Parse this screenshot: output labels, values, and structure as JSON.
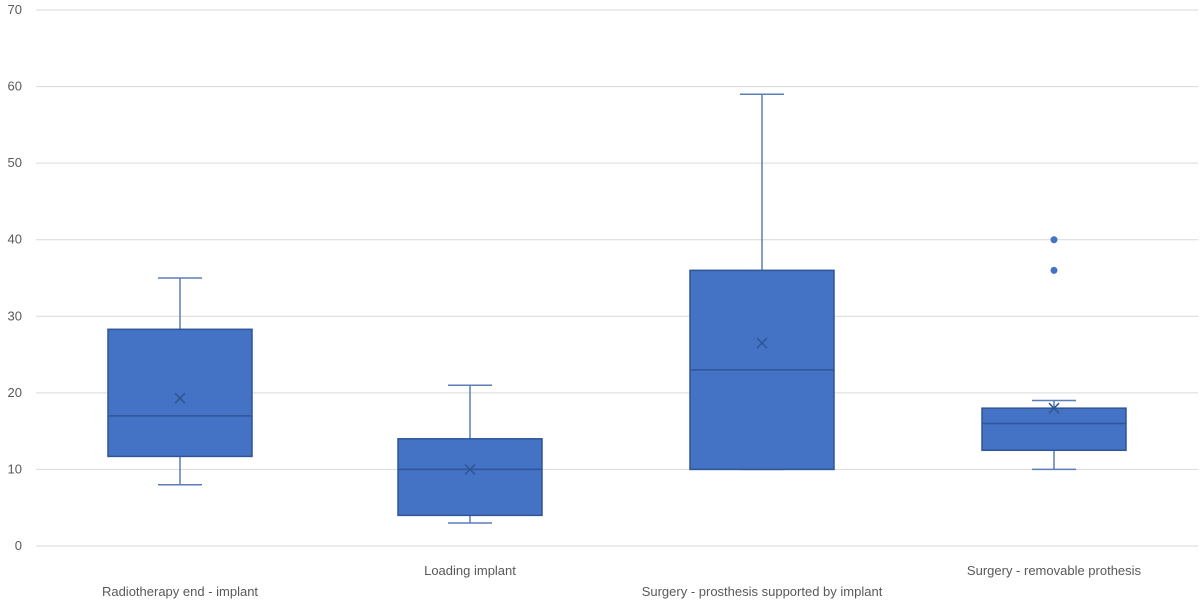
{
  "chart_data": {
    "type": "box",
    "title": "",
    "xlabel": "",
    "ylabel": "",
    "ylim": [
      0,
      70
    ],
    "yticks": [
      0,
      10,
      20,
      30,
      40,
      50,
      60,
      70
    ],
    "grid": true,
    "legend": "none",
    "colors": {
      "box_fill": "#4472C4",
      "box_stroke": "#2F5597",
      "whisker": "#5B7DB8",
      "grid": "#D9D9D9",
      "text": "#595959"
    },
    "categories": [
      "Radiotherapy end - implant",
      "Loading implant",
      "Surgery - prosthesis supported by implant",
      "Surgery - removable prothesis"
    ],
    "boxes": [
      {
        "min": 8,
        "q1": 11.7,
        "median": 17,
        "q3": 28.3,
        "max": 35,
        "mean": 19.3,
        "outliers": []
      },
      {
        "min": 3,
        "q1": 4,
        "median": 10,
        "q3": 14,
        "max": 21,
        "mean": 10,
        "outliers": []
      },
      {
        "min": 10,
        "q1": 10,
        "median": 23,
        "q3": 36,
        "max": 59,
        "mean": 26.5,
        "outliers": []
      },
      {
        "min": 10,
        "q1": 12.5,
        "median": 16,
        "q3": 18,
        "max": 19,
        "mean": 18,
        "outliers": [
          36,
          40
        ]
      }
    ]
  }
}
